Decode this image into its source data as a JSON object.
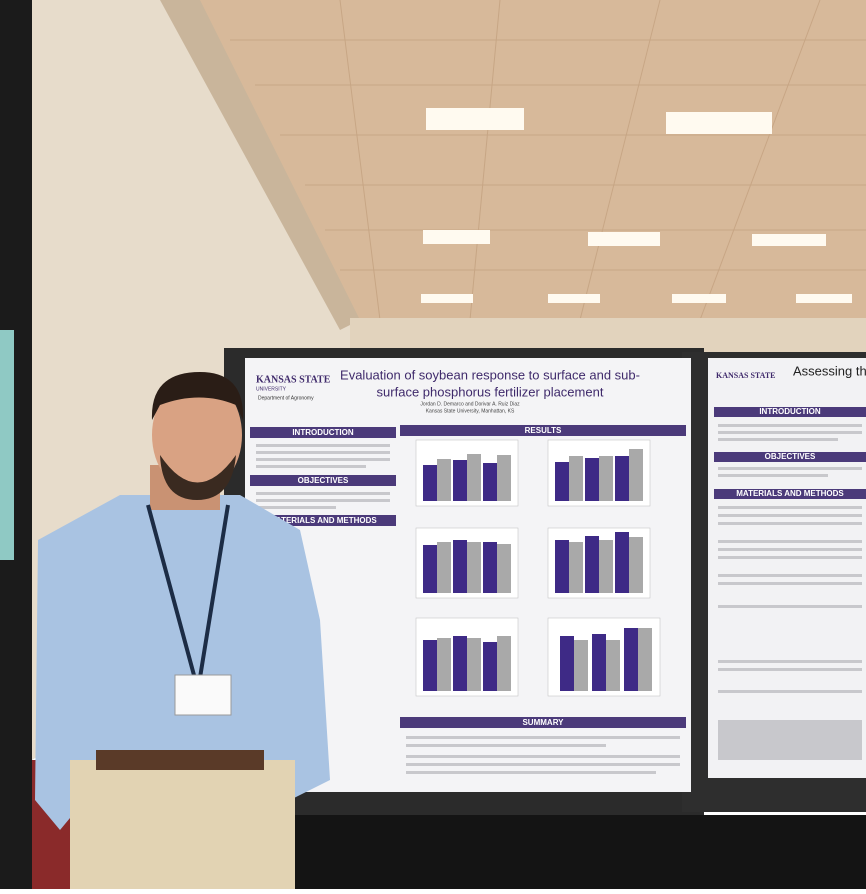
{
  "poster_main": {
    "logo": "KANSAS STATE",
    "logo_sub": "UNIVERSITY",
    "department": "Department of Agronomy",
    "title_lines": [
      "Evaluation of soybean response to surface and sub-",
      "surface phosphorus fertilizer placement"
    ],
    "authors": "Jordan D. Demarco and Dorivar A. Ruiz Diaz",
    "affiliation": "Kansas State University, Manhattan, KS",
    "sections": [
      "INTRODUCTION",
      "OBJECTIVES",
      "MATERIALS AND METHODS",
      "RESULTS",
      "SUMMARY"
    ]
  },
  "poster_side": {
    "logo": "KANSAS STATE",
    "title": "Assessing the",
    "sections": [
      "INTRODUCTION",
      "OBJECTIVES",
      "MATERIALS AND METHODS"
    ]
  }
}
